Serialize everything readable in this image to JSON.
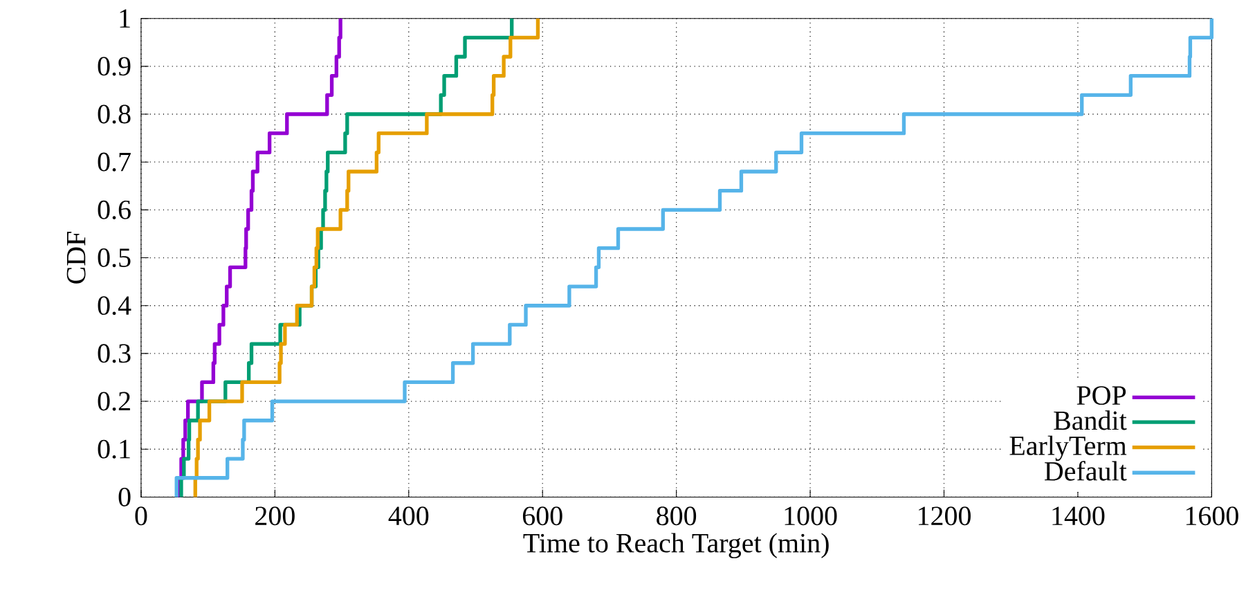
{
  "chart_data": {
    "type": "step",
    "xlabel": "Time to Reach Target (min)",
    "ylabel": "CDF",
    "xlim": [
      0,
      1600
    ],
    "ylim": [
      0,
      1
    ],
    "xticks": [
      0,
      200,
      400,
      600,
      800,
      1000,
      1200,
      1400,
      1600
    ],
    "yticks": [
      0,
      0.1,
      0.2,
      0.3,
      0.4,
      0.5,
      0.6,
      0.7,
      0.8,
      0.9,
      1
    ],
    "grid": true,
    "legend": "bottom right",
    "line_style": "solid",
    "marker": "none",
    "series": [
      {
        "name": "POP",
        "color": "#9400d3",
        "x": [
          57,
          57,
          60,
          63,
          66,
          70,
          91,
          108,
          110,
          117,
          123,
          128,
          133,
          156,
          157,
          160,
          165,
          167,
          174,
          192,
          218,
          278,
          285,
          292,
          296,
          298
        ],
        "values": [
          0,
          0.04,
          0.08,
          0.12,
          0.16,
          0.2,
          0.24,
          0.28,
          0.32,
          0.36,
          0.4,
          0.44,
          0.48,
          0.52,
          0.56,
          0.6,
          0.64,
          0.68,
          0.72,
          0.76,
          0.8,
          0.84,
          0.88,
          0.92,
          0.96,
          1
        ]
      },
      {
        "name": "Bandit",
        "color": "#009e73",
        "x": [
          60,
          60,
          64,
          71,
          72,
          85,
          126,
          161,
          165,
          208,
          237,
          255,
          261,
          265,
          269,
          272,
          275,
          277,
          279,
          305,
          308,
          448,
          453,
          471,
          484,
          554
        ],
        "values": [
          0,
          0.04,
          0.08,
          0.12,
          0.16,
          0.2,
          0.24,
          0.28,
          0.32,
          0.36,
          0.4,
          0.44,
          0.48,
          0.52,
          0.56,
          0.6,
          0.64,
          0.68,
          0.72,
          0.76,
          0.8,
          0.84,
          0.88,
          0.92,
          0.96,
          1
        ]
      },
      {
        "name": "EarlyTerm",
        "color": "#e69f00",
        "x": [
          81,
          81,
          83,
          85,
          88,
          102,
          151,
          207,
          209,
          215,
          233,
          255,
          259,
          262,
          264,
          298,
          308,
          310,
          352,
          355,
          427,
          525,
          527,
          542,
          552,
          593
        ],
        "values": [
          0,
          0.04,
          0.08,
          0.12,
          0.16,
          0.2,
          0.24,
          0.28,
          0.32,
          0.36,
          0.4,
          0.44,
          0.48,
          0.52,
          0.56,
          0.6,
          0.64,
          0.68,
          0.72,
          0.76,
          0.8,
          0.84,
          0.88,
          0.92,
          0.96,
          1
        ]
      },
      {
        "name": "Default",
        "color": "#56b4e9",
        "x": [
          53,
          53,
          129,
          152,
          154,
          196,
          394,
          466,
          496,
          551,
          575,
          640,
          680,
          684,
          713,
          780,
          865,
          897,
          949,
          987,
          1140,
          1406,
          1479,
          1567,
          1568,
          1600
        ],
        "values": [
          0,
          0.04,
          0.08,
          0.12,
          0.16,
          0.2,
          0.24,
          0.28,
          0.32,
          0.36,
          0.4,
          0.44,
          0.48,
          0.52,
          0.56,
          0.6,
          0.64,
          0.68,
          0.72,
          0.76,
          0.8,
          0.84,
          0.88,
          0.92,
          0.96,
          1
        ]
      }
    ]
  }
}
